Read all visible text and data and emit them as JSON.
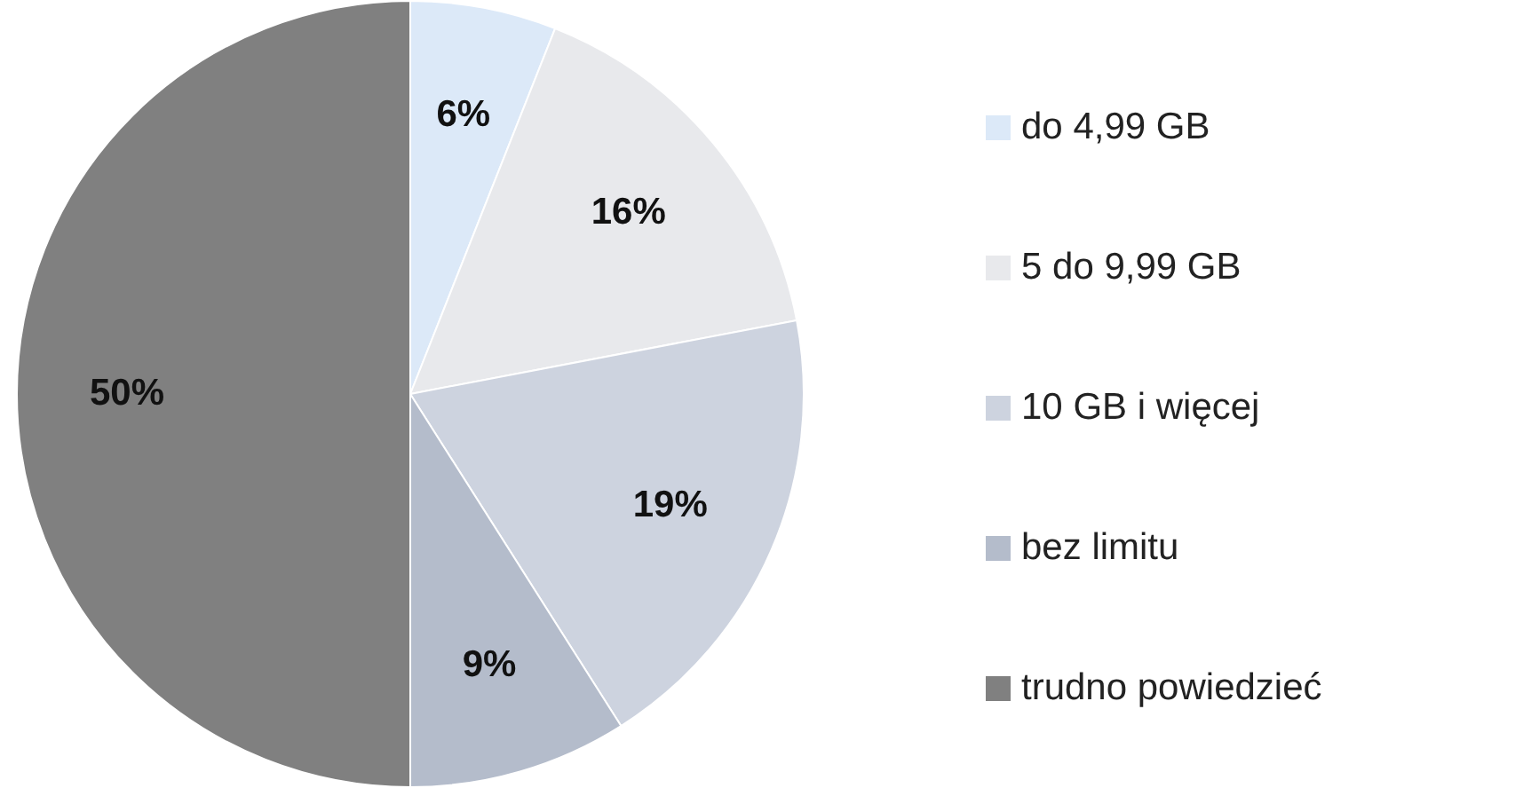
{
  "chart_data": {
    "type": "pie",
    "categories": [
      "do 4,99 GB",
      "5 do 9,99 GB",
      "10 GB i więcej",
      "bez limitu",
      "trudno powiedzieć"
    ],
    "values": [
      6,
      16,
      19,
      9,
      50
    ],
    "colors": [
      "#dce9f8",
      "#e8e9ec",
      "#cdd3df",
      "#b4bccb",
      "#808080"
    ],
    "value_labels": [
      "6%",
      "16%",
      "19%",
      "9%",
      "50%"
    ],
    "legend": "right"
  }
}
